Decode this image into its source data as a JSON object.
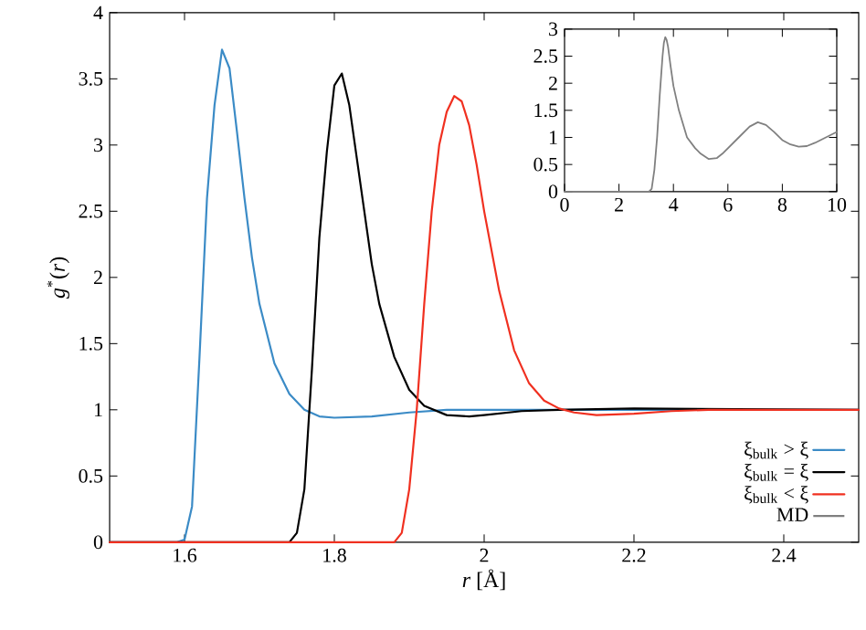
{
  "chart_data": [
    {
      "type": "line",
      "xlabel": "*r* [Å]",
      "ylabel": "*g*$^{*}$(*r*)",
      "xlim": [
        1.5,
        2.5
      ],
      "ylim": [
        0,
        4
      ],
      "xticks": [
        1.6,
        1.8,
        2,
        2.2,
        2.4
      ],
      "yticks": [
        0,
        0.5,
        1,
        1.5,
        2,
        2.5,
        3,
        3.5,
        4
      ],
      "legend": "bottom right",
      "grid": false,
      "series": [
        {
          "name": "ξ$_{bulk}$ > ξ",
          "color": "#3b8bc6",
          "x": [
            1.5,
            1.59,
            1.6,
            1.61,
            1.62,
            1.63,
            1.64,
            1.65,
            1.66,
            1.67,
            1.68,
            1.69,
            1.7,
            1.72,
            1.74,
            1.76,
            1.78,
            1.8,
            1.85,
            1.9,
            1.95,
            2.0,
            2.5
          ],
          "values": [
            0,
            0,
            0.02,
            0.27,
            1.4,
            2.6,
            3.3,
            3.72,
            3.58,
            3.1,
            2.6,
            2.15,
            1.8,
            1.35,
            1.12,
            1.0,
            0.95,
            0.94,
            0.95,
            0.98,
            1.0,
            1.0,
            1.0
          ]
        },
        {
          "name": "ξ$_{bulk}$ = ξ",
          "color": "#000000",
          "x": [
            1.5,
            1.74,
            1.75,
            1.76,
            1.77,
            1.78,
            1.79,
            1.8,
            1.81,
            1.82,
            1.83,
            1.84,
            1.85,
            1.86,
            1.88,
            1.9,
            1.92,
            1.95,
            1.98,
            2.0,
            2.05,
            2.1,
            2.2,
            2.5
          ],
          "values": [
            0,
            0,
            0.07,
            0.4,
            1.3,
            2.3,
            2.95,
            3.45,
            3.54,
            3.3,
            2.9,
            2.5,
            2.1,
            1.8,
            1.4,
            1.15,
            1.03,
            0.96,
            0.95,
            0.96,
            0.99,
            1.0,
            1.01,
            1.0
          ]
        },
        {
          "name": "ξ$_{bulk}$ < ξ",
          "color": "#f03020",
          "x": [
            1.5,
            1.88,
            1.89,
            1.9,
            1.91,
            1.92,
            1.93,
            1.94,
            1.95,
            1.96,
            1.97,
            1.98,
            1.99,
            2.0,
            2.02,
            2.04,
            2.06,
            2.08,
            2.1,
            2.12,
            2.15,
            2.2,
            2.25,
            2.3,
            2.5
          ],
          "values": [
            0,
            0,
            0.07,
            0.4,
            1.0,
            1.8,
            2.5,
            3.0,
            3.25,
            3.37,
            3.33,
            3.15,
            2.85,
            2.5,
            1.9,
            1.45,
            1.2,
            1.07,
            1.01,
            0.98,
            0.96,
            0.97,
            0.99,
            1.0,
            1.0
          ]
        }
      ]
    },
    {
      "type": "line",
      "xlim": [
        0,
        10
      ],
      "ylim": [
        0,
        3
      ],
      "xticks": [
        0,
        2,
        4,
        6,
        8,
        10
      ],
      "yticks": [
        0,
        0.5,
        1,
        1.5,
        2,
        2.5,
        3
      ],
      "grid": false,
      "series": [
        {
          "name": "MD",
          "color": "#808080",
          "x": [
            0,
            3.1,
            3.2,
            3.3,
            3.4,
            3.5,
            3.6,
            3.65,
            3.7,
            3.75,
            3.8,
            3.9,
            4.0,
            4.2,
            4.5,
            4.8,
            5.0,
            5.3,
            5.6,
            5.8,
            6.1,
            6.4,
            6.8,
            7.1,
            7.4,
            7.7,
            8.0,
            8.3,
            8.6,
            8.9,
            9.2,
            9.6,
            10
          ],
          "values": [
            0,
            0,
            0.05,
            0.4,
            1.0,
            1.8,
            2.5,
            2.75,
            2.85,
            2.8,
            2.68,
            2.3,
            1.95,
            1.5,
            1.0,
            0.8,
            0.7,
            0.6,
            0.62,
            0.7,
            0.85,
            1.0,
            1.2,
            1.28,
            1.23,
            1.1,
            0.95,
            0.87,
            0.83,
            0.84,
            0.9,
            1.0,
            1.1
          ]
        }
      ]
    }
  ]
}
